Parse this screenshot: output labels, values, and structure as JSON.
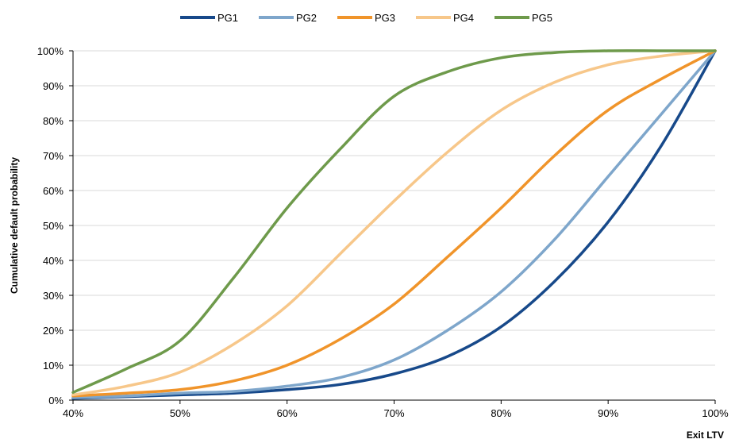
{
  "chart_data": {
    "type": "line",
    "title": "",
    "xlabel": "Exit LTV",
    "ylabel": "Cumulative default probability",
    "xlim": [
      40,
      100
    ],
    "ylim": [
      0,
      100
    ],
    "x_ticks": [
      "40%",
      "50%",
      "60%",
      "70%",
      "80%",
      "90%",
      "100%"
    ],
    "y_ticks": [
      "0%",
      "10%",
      "20%",
      "30%",
      "40%",
      "50%",
      "60%",
      "70%",
      "80%",
      "90%",
      "100%"
    ],
    "grid": true,
    "legend_position": "top-center",
    "x": [
      40,
      45,
      50,
      55,
      60,
      65,
      70,
      75,
      80,
      85,
      90,
      95,
      100
    ],
    "series": [
      {
        "name": "PG1",
        "color": "#17498a",
        "values": [
          0.5,
          1,
          1.5,
          2,
          3,
          4.5,
          7.5,
          12.5,
          21,
          34,
          51,
          73,
          100
        ]
      },
      {
        "name": "PG2",
        "color": "#7ea6cb",
        "values": [
          0.7,
          1.2,
          2,
          2.5,
          4,
          6.5,
          11.5,
          20,
          31,
          46,
          64,
          82,
          100
        ]
      },
      {
        "name": "PG3",
        "color": "#f0942a",
        "values": [
          1.2,
          2,
          3,
          5.5,
          10,
          17.5,
          27.5,
          41,
          55,
          70,
          83,
          92,
          100
        ]
      },
      {
        "name": "PG4",
        "color": "#f7c78a",
        "values": [
          1.5,
          4,
          8,
          16,
          27,
          42,
          57,
          71,
          83,
          91,
          96,
          98.5,
          100
        ]
      },
      {
        "name": "PG5",
        "color": "#6e9a4b",
        "values": [
          2.2,
          9,
          17,
          35,
          55,
          72,
          87,
          94,
          98,
          99.5,
          100,
          100,
          100
        ]
      }
    ]
  }
}
